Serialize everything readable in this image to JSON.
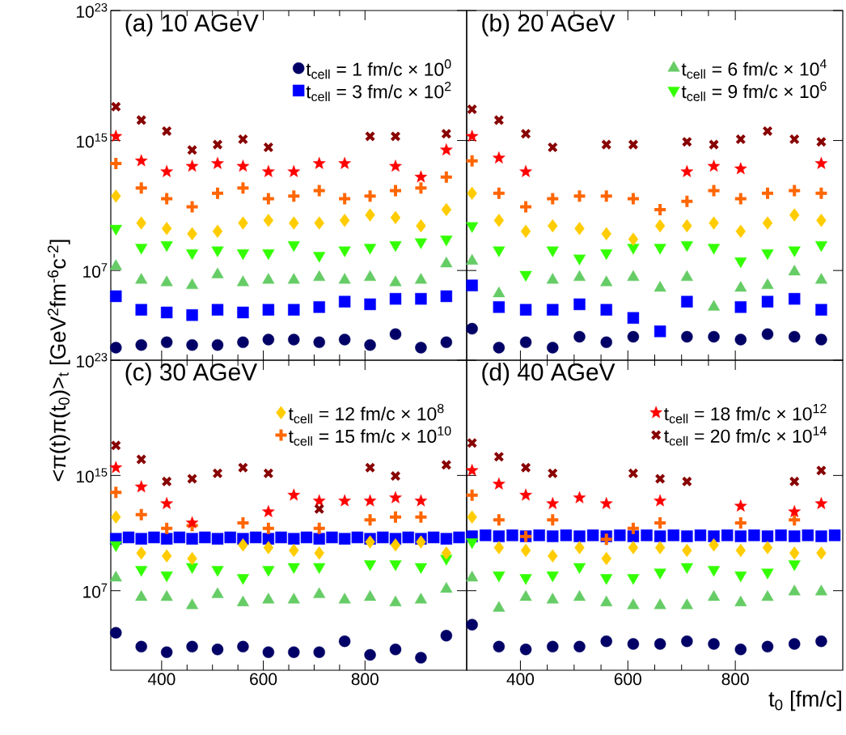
{
  "chart_data": [
    {
      "type": "scatter",
      "title": "(a) 10 AGeV",
      "ylabel": "<π(t)π(t$_{0}$)>$_{t}$ [GeV$^{2}$fm$^{-6}$c$^{-2}$]",
      "log": "y",
      "legend": "top right",
      "tick_labels": "y",
      "xlim": [
        300,
        1000
      ],
      "xticks": [
        400,
        600,
        800
      ],
      "ylim": [
        30,
        1e+23
      ],
      "yticks": [
        {
          "value": 10000000.0,
          "label": "10$^{7}$"
        },
        {
          "value": 1000000000000000.0,
          "label": "10$^{15}$"
        },
        {
          "value": 1e+23,
          "label": "10$^{23}$"
        }
      ],
      "x": [
        310,
        360,
        410,
        460,
        510,
        560,
        610,
        660,
        710,
        760,
        810,
        860,
        910,
        960
      ],
      "series": [
        {
          "name": "t$_{cell}$ = 1 fm/c × 10$^{0}$",
          "color": "#000066",
          "marker": "circle",
          "values": [
            180,
            260,
            380,
            260,
            260,
            380,
            560,
            560,
            380,
            560,
            260,
            1200,
            180,
            380
          ]
        },
        {
          "name": "t$_{cell}$ = 3 fm/c × 10$^{2}$",
          "color": "#0000ff",
          "marker": "square",
          "values": [
            260000.0,
            38000.0,
            26000.0,
            18000.0,
            38000.0,
            26000.0,
            38000.0,
            38000.0,
            56000.0,
            120000.0,
            83000.0,
            180000.0,
            180000.0,
            260000.0
          ]
        },
        {
          "color": "#66cc66",
          "marker": "triangle",
          "values": [
            18000000.0,
            2600000.0,
            1800000.0,
            1200000.0,
            5600000.0,
            1800000.0,
            2600000.0,
            2600000.0,
            3800000.0,
            2600000.0,
            3800000.0,
            1800000.0,
            2600000.0,
            26000000.0
          ]
        },
        {
          "color": "#33ff00",
          "marker": "triangle-down",
          "values": [
            3800000000.0,
            260000000.0,
            380000000.0,
            120000000.0,
            180000000.0,
            120000000.0,
            120000000.0,
            380000000.0,
            83000000.0,
            180000000.0,
            260000000.0,
            380000000.0,
            560000000.0,
            830000000.0
          ]
        },
        {
          "color": "#ffcc00",
          "marker": "diamond",
          "values": [
            380000000000.0,
            8300000000.0,
            3800000000.0,
            1800000000.0,
            2600000000.0,
            8300000000.0,
            12000000000.0,
            8300000000.0,
            8300000000.0,
            12000000000.0,
            26000000000.0,
            18000000000.0,
            5600000000.0,
            56000000000.0
          ]
        },
        {
          "color": "#ff6600",
          "marker": "plus",
          "values": [
            38000000000000.0,
            1200000000000.0,
            260000000000.0,
            83000000000.0,
            560000000000.0,
            1200000000000.0,
            260000000000.0,
            380000000000.0,
            830000000000.0,
            260000000000.0,
            380000000000.0,
            830000000000.0,
            1200000000000.0,
            5600000000000.0
          ]
        },
        {
          "color": "#ff0000",
          "marker": "star",
          "values": [
            1800000000000000.0,
            56000000000000.0,
            12000000000000.0,
            26000000000000.0,
            38000000000000.0,
            26000000000000.0,
            12000000000000.0,
            12000000000000.0,
            38000000000000.0,
            38000000000000.0,
            null,
            26000000000000.0,
            5600000000000.0,
            260000000000000.0
          ]
        },
        {
          "color": "#880000",
          "marker": "cross",
          "values": [
            1.2e+17,
            1.8e+16,
            3800000000000000.0,
            260000000000000.0,
            560000000000000.0,
            1200000000000000.0,
            380000000000000.0,
            null,
            null,
            null,
            1800000000000000.0,
            1800000000000000.0,
            null,
            2600000000000000.0
          ]
        }
      ]
    },
    {
      "type": "scatter",
      "title": "(b) 20 AGeV",
      "log": "y",
      "legend": "top right",
      "tick_labels": false,
      "xlim": [
        300,
        1000
      ],
      "xticks": [
        400,
        600,
        800
      ],
      "ylim": [
        30,
        1e+23
      ],
      "yticks": [
        {
          "value": 10000000.0,
          "label": null
        },
        {
          "value": 1000000000000000.0,
          "label": null
        },
        {
          "value": 1e+23,
          "label": null
        }
      ],
      "x": [
        310,
        360,
        410,
        460,
        510,
        560,
        610,
        660,
        710,
        760,
        810,
        860,
        910,
        960
      ],
      "series": [
        {
          "color": "#000066",
          "marker": "circle",
          "values": [
            2600,
            180,
            380,
            180,
            830,
            380,
            830,
            null,
            830,
            830,
            560,
            1200,
            830,
            560
          ]
        },
        {
          "color": "#0000ff",
          "marker": "square",
          "values": [
            1200000.0,
            56000.0,
            38000.0,
            38000.0,
            83000.0,
            38000.0,
            12000.0,
            1800,
            120000.0,
            null,
            56000.0,
            120000.0,
            180000.0,
            38000.0
          ]
        },
        {
          "name": "t$_{cell}$ = 6 fm/c × 10$^{4}$",
          "color": "#66cc66",
          "marker": "triangle",
          "values": [
            38000000.0,
            380000.0,
            null,
            2600000.0,
            3800000.0,
            1800000.0,
            3800000.0,
            830000.0,
            3800000.0,
            56000.0,
            830000.0,
            1200000.0,
            8300000.0,
            2600000.0
          ]
        },
        {
          "name": "t$_{cell}$ = 9 fm/c × 10$^{6}$",
          "color": "#33ff00",
          "marker": "triangle-down",
          "values": [
            5600000000.0,
            180000000.0,
            5600000.0,
            180000000.0,
            56000000.0,
            120000000.0,
            260000000.0,
            260000000.0,
            380000000.0,
            260000000.0,
            38000000.0,
            120000000.0,
            180000000.0,
            380000000.0
          ]
        },
        {
          "color": "#ffcc00",
          "marker": "diamond",
          "values": [
            560000000000.0,
            12000000000.0,
            2600000000.0,
            5600000000.0,
            3800000000.0,
            1800000000.0,
            830000000.0,
            5600000000.0,
            5600000000.0,
            8300000000.0,
            2600000000.0,
            8300000000.0,
            26000000000.0,
            12000000000.0
          ]
        },
        {
          "color": "#ff6600",
          "marker": "plus",
          "values": [
            56000000000000.0,
            560000000000.0,
            83000000000.0,
            260000000000.0,
            380000000000.0,
            380000000000.0,
            260000000000.0,
            56000000000.0,
            180000000000.0,
            830000000000.0,
            260000000000.0,
            560000000000.0,
            830000000000.0,
            560000000000.0
          ]
        },
        {
          "color": "#ff0000",
          "marker": "star",
          "values": [
            1800000000000000.0,
            83000000000000.0,
            12000000000000.0,
            null,
            null,
            null,
            null,
            null,
            12000000000000.0,
            26000000000000.0,
            18000000000000.0,
            null,
            null,
            38000000000000.0
          ]
        },
        {
          "color": "#880000",
          "marker": "cross",
          "values": [
            8.3e+16,
            1.8e+16,
            2600000000000000.0,
            380000000000000.0,
            null,
            560000000000000.0,
            560000000000000.0,
            null,
            830000000000000.0,
            560000000000000.0,
            1200000000000000.0,
            3800000000000000.0,
            1200000000000000.0,
            830000000000000.0
          ]
        }
      ]
    },
    {
      "type": "scatter",
      "title": "(c) 30 AGeV",
      "log": "y",
      "legend": "top right",
      "xlim": [
        300,
        1000
      ],
      "xticks": [
        400,
        600,
        800
      ],
      "ylim": [
        30,
        1e+23
      ],
      "yticks": [
        {
          "value": 10000000.0,
          "label": "10$^{7}$"
        },
        {
          "value": 1000000000000000.0,
          "label": "10$^{15}$"
        },
        {
          "value": 1e+23,
          "label": "10$^{23}$"
        }
      ],
      "x": [
        310,
        360,
        410,
        460,
        510,
        560,
        610,
        660,
        710,
        760,
        810,
        860,
        910,
        960
      ],
      "series": [
        {
          "color": "#000066",
          "marker": "circle",
          "values": [
            12000.0,
            1300,
            540,
            1300,
            830,
            1300,
            540,
            540,
            540,
            3100,
            350,
            830,
            220,
            7600
          ]
        },
        {
          "color": "#0000ff",
          "marker": "square",
          "x": [
            310,
            335,
            360,
            385,
            410,
            435,
            460,
            485,
            510,
            535,
            560,
            585,
            610,
            635,
            660,
            685,
            710,
            735,
            760,
            785,
            810,
            835,
            860,
            885,
            910,
            935,
            960,
            985
          ],
          "values": [
            40000000000.0,
            50000000000.0,
            40000000000.0,
            50000000000.0,
            40000000000.0,
            50000000000.0,
            40000000000.0,
            50000000000.0,
            40000000000.0,
            50000000000.0,
            40000000000.0,
            50000000000.0,
            40000000000.0,
            50000000000.0,
            40000000000.0,
            50000000000.0,
            40000000000.0,
            50000000000.0,
            40000000000.0,
            50000000000.0,
            40000000000.0,
            50000000000.0,
            40000000000.0,
            50000000000.0,
            40000000000.0,
            50000000000.0,
            40000000000.0,
            50000000000.0
          ]
        },
        {
          "color": "#66cc66",
          "marker": "triangle",
          "values": [
            78000000.0,
            3500000.0,
            3500000.0,
            950000.0,
            5500000.0,
            1500000.0,
            2300000.0,
            2300000.0,
            5500000.0,
            2300000.0,
            3500000.0,
            1500000.0,
            2300000.0,
            13000000.0
          ]
        },
        {
          "color": "#33ff00",
          "marker": "triangle-down",
          "values": [
            15000000000.0,
            290000000.0,
            120000000.0,
            460000000.0,
            290000000.0,
            78000000.0,
            290000000.0,
            460000000.0,
            460000000.0,
            null,
            710000000.0,
            710000000.0,
            460000000.0,
            1700000000.0
          ]
        },
        {
          "name": "t$_{cell}$ = 12 fm/c × 10$^{8}$",
          "color": "#ffcc00",
          "marker": "diamond",
          "values": [
            1300000000000.0,
            4100000000.0,
            2600000000.0,
            1700000000.0,
            null,
            15000000000.0,
            9800000000.0,
            6300000000.0,
            4100000000.0,
            null,
            24000000000.0,
            15000000000.0,
            24000000000.0,
            4100000000.0
          ]
        },
        {
          "name": "t$_{cell}$ = 15 fm/c × 10$^{10}$",
          "color": "#ff6600",
          "marker": "plus",
          "values": [
            66000000000000.0,
            1900000000000.0,
            210000000000.0,
            330000000000.0,
            null,
            510000000000.0,
            210000000000.0,
            null,
            210000000000.0,
            null,
            810000000000.0,
            1300000000000.0,
            1300000000000.0,
            null
          ]
        },
        {
          "color": "#ff0000",
          "marker": "star",
          "values": [
            3500000000000000.0,
            160000000000000.0,
            11000000000000.0,
            510000000000.0,
            null,
            null,
            3000000000000.0,
            43000000000000.0,
            17000000000000.0,
            17000000000000.0,
            17000000000000.0,
            28000000000000.0,
            17000000000000.0,
            null
          ]
        },
        {
          "color": "#880000",
          "marker": "cross",
          "values": [
            1.2e+17,
            1.3e+16,
            380000000000000.0,
            590000000000000.0,
            1400000000000000.0,
            3500000000000000.0,
            1400000000000000.0,
            null,
            4700000000000.0,
            null,
            3500000000000000.0,
            910000000000000.0,
            null,
            5400000000000000.0
          ]
        }
      ]
    },
    {
      "type": "scatter",
      "title": "(d) 40 AGeV",
      "xlabel": "t$_{0}$ [fm/c]",
      "log": "y",
      "legend": "top right",
      "tick_labels": "x",
      "xlim": [
        300,
        1000
      ],
      "xticks": [
        400,
        600,
        800
      ],
      "ylim": [
        30,
        1e+23
      ],
      "yticks": [
        {
          "value": 10000000.0,
          "label": null
        },
        {
          "value": 1000000000000000.0,
          "label": null
        },
        {
          "value": 1e+23,
          "label": null
        }
      ],
      "x": [
        310,
        360,
        410,
        460,
        510,
        560,
        610,
        660,
        710,
        760,
        810,
        860,
        910,
        960
      ],
      "series": [
        {
          "color": "#000066",
          "marker": "circle",
          "values": [
            44000.0,
            1300,
            830,
            1300,
            1300,
            3100,
            2000,
            2000,
            3100,
            2000,
            830,
            1300,
            2000,
            3100
          ]
        },
        {
          "color": "#0000ff",
          "marker": "square",
          "x": [
            310,
            335,
            360,
            385,
            410,
            435,
            460,
            485,
            510,
            535,
            560,
            585,
            610,
            635,
            660,
            685,
            710,
            735,
            760,
            785,
            810,
            835,
            860,
            885,
            910,
            935,
            960,
            985
          ],
          "values": [
            60000000000.0,
            70000000000.0,
            60000000000.0,
            70000000000.0,
            60000000000.0,
            70000000000.0,
            60000000000.0,
            70000000000.0,
            60000000000.0,
            70000000000.0,
            60000000000.0,
            70000000000.0,
            60000000000.0,
            70000000000.0,
            60000000000.0,
            70000000000.0,
            60000000000.0,
            70000000000.0,
            60000000000.0,
            70000000000.0,
            60000000000.0,
            70000000000.0,
            60000000000.0,
            70000000000.0,
            60000000000.0,
            70000000000.0,
            60000000000.0,
            70000000000.0
          ]
        },
        {
          "color": "#66cc66",
          "marker": "triangle",
          "values": [
            78000000.0,
            620000.0,
            3500000.0,
            2300000.0,
            3500000.0,
            1500000.0,
            950000.0,
            950000.0,
            950000.0,
            3500000.0,
            1500000.0,
            3500000.0,
            8500000.0,
            8500000.0
          ]
        },
        {
          "color": "#33ff00",
          "marker": "triangle-down",
          "values": [
            24000000000.0,
            120000000.0,
            78000000.0,
            120000000.0,
            460000000.0,
            78000000.0,
            78000000.0,
            190000000.0,
            460000000.0,
            290000000.0,
            120000000.0,
            190000000.0,
            710000000.0,
            null
          ]
        },
        {
          "color": "#ffcc00",
          "marker": "diamond",
          "values": [
            1300000000000.0,
            9800000000.0,
            6300000000.0,
            2600000000.0,
            9800000000.0,
            1700000000.0,
            9800000000.0,
            9800000000.0,
            6300000000.0,
            15000000000.0,
            6300000000.0,
            9800000000.0,
            4100000000.0,
            4100000000.0
          ]
        },
        {
          "color": "#ff6600",
          "marker": "plus",
          "values": [
            43000000000000.0,
            810000000000.0,
            58000000000.0,
            810000000000.0,
            null,
            37000000000.0,
            210000000000.0,
            510000000000.0,
            null,
            null,
            510000000000.0,
            null,
            810000000000.0,
            null
          ]
        },
        {
          "name": "t$_{cell}$ = 18 fm/c × 10$^{12}$",
          "color": "#ff0000",
          "marker": "star",
          "values": [
            2200000000000000.0,
            250000000000000.0,
            43000000000000.0,
            11000000000000.0,
            28000000000000.0,
            11000000000000.0,
            null,
            17000000000000.0,
            null,
            null,
            7400000000000.0,
            null,
            3000000000000.0,
            11000000000000.0
          ]
        },
        {
          "name": "t$_{cell}$ = 20 fm/c × 10$^{14}$",
          "color": "#880000",
          "marker": "cross",
          "values": [
            1.8e+17,
            2e+16,
            3500000000000000.0,
            1400000000000000.0,
            null,
            null,
            1400000000000000.0,
            590000000000000.0,
            380000000000000.0,
            null,
            null,
            null,
            380000000000000.0,
            2200000000000000.0
          ]
        }
      ]
    }
  ]
}
